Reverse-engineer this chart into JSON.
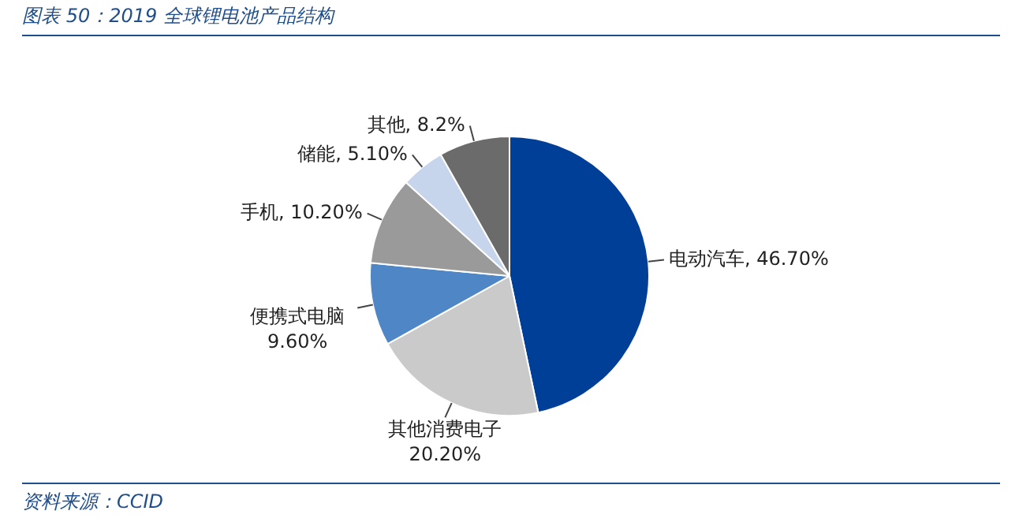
{
  "chart_data": {
    "type": "pie",
    "title": "图表 50：2019 全球锂电池产品结构",
    "categories": [
      "电动汽车",
      "其他消费电子",
      "便携式电脑",
      "手机",
      "储能",
      "其他"
    ],
    "values": [
      46.7,
      20.2,
      9.6,
      10.2,
      5.1,
      8.2
    ],
    "value_labels": [
      "46.70%",
      "20.20%",
      "9.60%",
      "10.20%",
      "5.10%",
      "8.2%"
    ],
    "colors": [
      "#003f98",
      "#cacaca",
      "#4f86c6",
      "#9a9a9a",
      "#c6d5ec",
      "#6b6b6b"
    ],
    "legend": false,
    "annotations": [
      "资料来源：CCID"
    ]
  }
}
